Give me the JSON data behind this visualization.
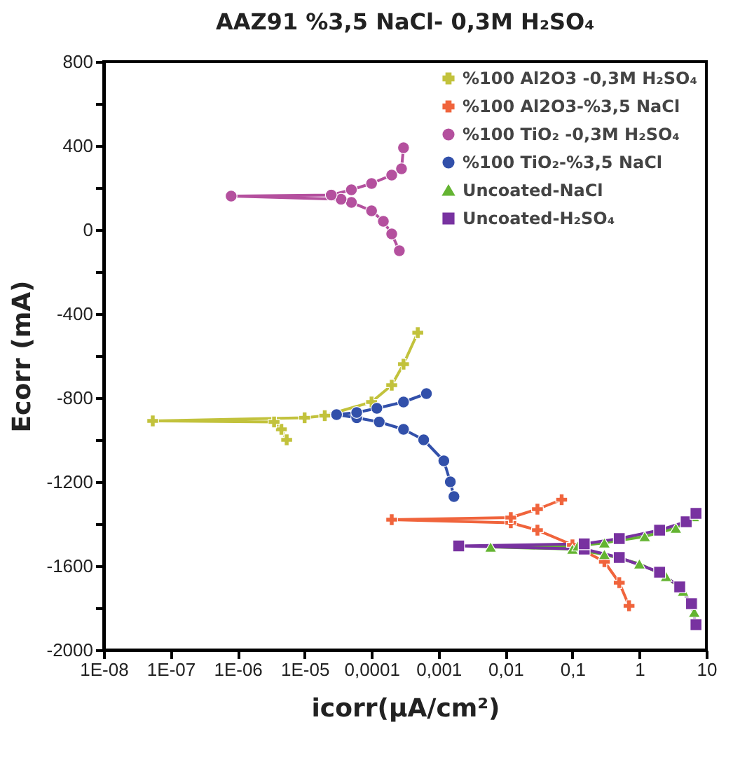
{
  "chart_data": {
    "type": "line",
    "title": "AAZ91 %3,5 NaCl- 0,3M H₂SO₄",
    "xlabel": "icorr(µA/cm²)",
    "ylabel": "Ecorr (mA)",
    "log": "x",
    "xlim": [
      1e-08,
      10
    ],
    "ylim": [
      -2000,
      800
    ],
    "xticks": [
      {
        "value": 1e-08,
        "label": "1E-08"
      },
      {
        "value": 1e-07,
        "label": "1E-07"
      },
      {
        "value": 1e-06,
        "label": "1E-06"
      },
      {
        "value": 1e-05,
        "label": "1E-05"
      },
      {
        "value": 0.0001,
        "label": "0,0001"
      },
      {
        "value": 0.001,
        "label": "0,001"
      },
      {
        "value": 0.01,
        "label": "0,01"
      },
      {
        "value": 0.1,
        "label": "0,1"
      },
      {
        "value": 1,
        "label": "1"
      },
      {
        "value": 10,
        "label": "10"
      }
    ],
    "yticks": [
      -2000,
      {
        "value": -1800,
        "label": null
      },
      -1600,
      {
        "value": -1400,
        "label": null
      },
      -1200,
      {
        "value": -1000,
        "label": null
      },
      -800,
      {
        "value": -600,
        "label": null
      },
      -400,
      {
        "value": -200,
        "label": null
      },
      0,
      {
        "value": 200,
        "label": null
      },
      400,
      {
        "value": 600,
        "label": null
      },
      800
    ],
    "grid": false,
    "legend": "top right",
    "series": [
      {
        "name": "%100 Al2O3 -0,3M H₂SO₄",
        "color": "#c2c23c",
        "marker": "cross",
        "x": [
          5.4e-06,
          4.5e-06,
          3.5e-06,
          5.4e-08,
          1e-05,
          2e-05,
          0.0001,
          0.0002,
          0.0003,
          0.00049
        ],
        "values": [
          -1000,
          -950,
          -915,
          -910,
          -895,
          -885,
          -820,
          -740,
          -640,
          -490
        ]
      },
      {
        "name": "%100 Al2O3-%3,5 NaCl",
        "color": "#f0643c",
        "marker": "cross",
        "x": [
          0.7,
          0.5,
          0.3,
          0.1,
          0.03,
          0.012,
          0.0002,
          0.012,
          0.03,
          0.069
        ],
        "values": [
          -1790,
          -1680,
          -1580,
          -1500,
          -1430,
          -1395,
          -1380,
          -1370,
          -1330,
          -1285
        ]
      },
      {
        "name": "%100 TiO₂ -0,3M H₂SO₄",
        "color": "#b4509e",
        "marker": "circle",
        "x": [
          0.00026,
          0.0002,
          0.00015,
          0.0001,
          5e-05,
          3.5e-05,
          8e-07,
          2.5e-05,
          5e-05,
          0.0001,
          0.0002,
          0.00028,
          0.0003
        ],
        "values": [
          -100,
          -20,
          40,
          90,
          130,
          145,
          160,
          165,
          190,
          220,
          260,
          290,
          390
        ]
      },
      {
        "name": "%100 TiO₂-%3,5 NaCl",
        "color": "#3250aa",
        "marker": "circle",
        "x": [
          0.0017,
          0.0015,
          0.0012,
          0.0006,
          0.0003,
          0.00013,
          6e-05,
          3e-05,
          6e-05,
          0.00012,
          0.0003,
          0.00066
        ],
        "values": [
          -1270,
          -1200,
          -1100,
          -1000,
          -950,
          -915,
          -895,
          -880,
          -870,
          -850,
          -820,
          -780
        ]
      },
      {
        "name": "Uncoated-NaCl",
        "color": "#64b432",
        "marker": "triangle",
        "x": [
          6.6,
          4.5,
          2.5,
          1,
          0.3,
          0.1,
          0.006,
          0.12,
          0.3,
          1.2,
          3.5,
          6.5
        ],
        "values": [
          -1820,
          -1720,
          -1650,
          -1590,
          -1545,
          -1520,
          -1510,
          -1505,
          -1490,
          -1460,
          -1420,
          -1365
        ]
      },
      {
        "name": "Uncoated-H₂SO₄",
        "color": "#7832a0",
        "marker": "square",
        "x": [
          7,
          6,
          4,
          2,
          0.5,
          0.15,
          0.002,
          0.15,
          0.5,
          2,
          5,
          7
        ],
        "values": [
          -1880,
          -1780,
          -1700,
          -1630,
          -1560,
          -1520,
          -1505,
          -1495,
          -1470,
          -1430,
          -1390,
          -1350
        ]
      }
    ]
  }
}
